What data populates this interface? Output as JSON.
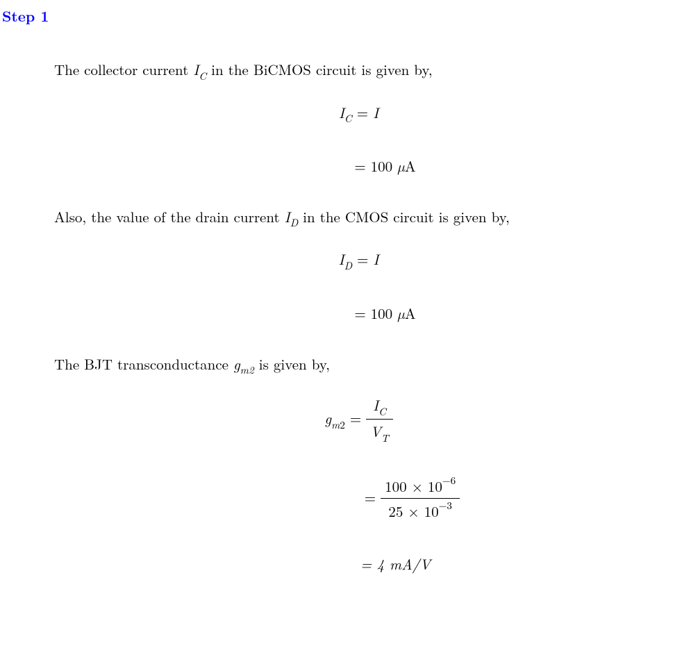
{
  "step": {
    "label": "Step 1"
  },
  "paragraphs": {
    "p1_pre": "The collector current ",
    "p1_var": "I",
    "p1_sub": "C",
    "p1_post": " in the BiCMOS circuit is given by,",
    "p2_pre": "Also, the value of the drain current ",
    "p2_var": "I",
    "p2_sub": "D",
    "p2_post": " in the CMOS circuit is given by,",
    "p3_pre": "The BJT transconductance ",
    "p3_var": "g",
    "p3_sub": "m",
    "p3_sub2": "2",
    "p3_post": " is given by,"
  },
  "equations": {
    "eq1_lhs_I": "I",
    "eq1_lhs_sub": "C",
    "eq1_eq": " = ",
    "eq1_rhs": "I",
    "eq2_eq": "= 100 ",
    "eq2_mu": "µ",
    "eq2_unit": "A",
    "eq3_lhs_I": "I",
    "eq3_lhs_sub": "D",
    "eq3_eq": " = ",
    "eq3_rhs": "I",
    "eq4_eq": "= 100 ",
    "eq4_mu": "µ",
    "eq4_unit": "A",
    "eq5_g": "g",
    "eq5_sub_m": "m",
    "eq5_sub_2": "2",
    "eq5_eq": " = ",
    "eq5_num_I": "I",
    "eq5_num_sub": "C",
    "eq5_den_V": "V",
    "eq5_den_sub": "T",
    "eq6_eq": "= ",
    "eq6_num_a": "100 × 10",
    "eq6_num_exp": "−6",
    "eq6_den_a": "25 × 10",
    "eq6_den_exp": "−3",
    "eq7": "= 4 mA/V"
  },
  "colors": {
    "step_color": "#0000ff",
    "text_color": "#000000",
    "background": "#ffffff"
  },
  "typography": {
    "body_fontsize": 21,
    "step_fontsize": 21,
    "font_family": "Computer Modern / Latin Modern"
  }
}
